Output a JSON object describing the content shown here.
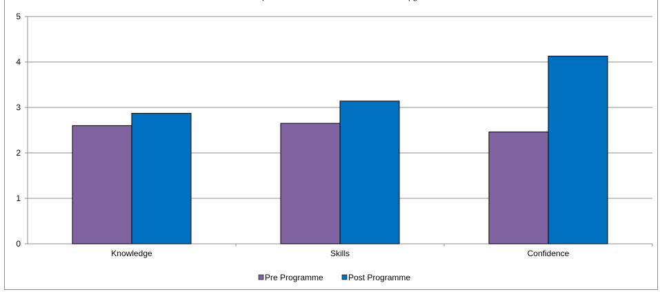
{
  "chart_data": {
    "type": "bar",
    "categories": [
      "Knowledge",
      "Skills",
      "Confidence"
    ],
    "series": [
      {
        "name": "Pre Programme",
        "values": [
          2.6,
          2.65,
          2.46
        ],
        "color": "#8064a2"
      },
      {
        "name": "Post Programme",
        "values": [
          2.87,
          3.14,
          4.13
        ],
        "color": "#0070c0"
      }
    ],
    "ylim": [
      0,
      5
    ],
    "yticks": [
      "0",
      "1",
      "2",
      "3",
      "4",
      "5"
    ],
    "grid": true,
    "legend_position": "bottom",
    "title_fragments": [
      "p",
      "pg"
    ]
  }
}
